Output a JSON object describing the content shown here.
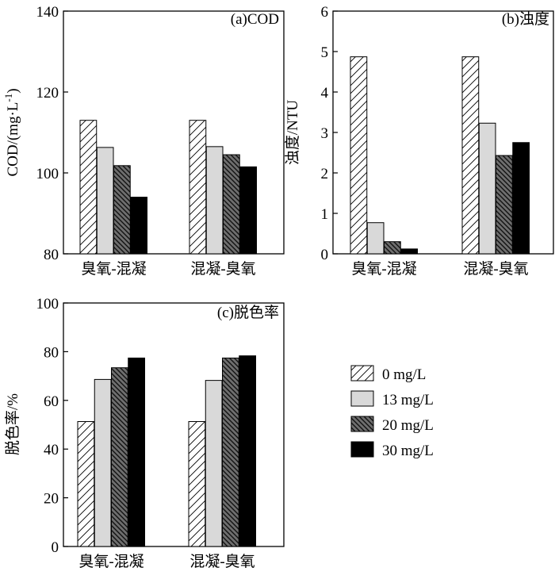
{
  "chart_data": [
    {
      "id": "a",
      "type": "bar",
      "title": "(a)COD",
      "ylabel": "COD/(mg·L",
      "ylabel_sup": "-1",
      "ylabel_close": ")",
      "ylim": [
        80,
        140
      ],
      "yticks": [
        80,
        100,
        120,
        140
      ],
      "categories": [
        "臭氧-混凝",
        "混凝-臭氧"
      ],
      "series": [
        {
          "name": "0 mg/L",
          "values": [
            113,
            113
          ]
        },
        {
          "name": "13 mg/L",
          "values": [
            106.3,
            106.5
          ]
        },
        {
          "name": "20 mg/L",
          "values": [
            101.8,
            104.5
          ]
        },
        {
          "name": "30 mg/L",
          "values": [
            94,
            101.5
          ]
        }
      ]
    },
    {
      "id": "b",
      "type": "bar",
      "title": "(b)浊度",
      "ylabel": "浊度/NTU",
      "ylim": [
        0,
        6
      ],
      "yticks": [
        0,
        1,
        2,
        3,
        4,
        5,
        6
      ],
      "categories": [
        "臭氧-混凝",
        "混凝-臭氧"
      ],
      "series": [
        {
          "name": "0 mg/L",
          "values": [
            4.87,
            4.87
          ]
        },
        {
          "name": "13 mg/L",
          "values": [
            0.77,
            3.23
          ]
        },
        {
          "name": "20 mg/L",
          "values": [
            0.3,
            2.43
          ]
        },
        {
          "name": "30 mg/L",
          "values": [
            0.12,
            2.75
          ]
        }
      ]
    },
    {
      "id": "c",
      "type": "bar",
      "title": "(c)脱色率",
      "ylabel": "脱色率/%",
      "ylim": [
        0,
        100
      ],
      "yticks": [
        0,
        20,
        40,
        60,
        80,
        100
      ],
      "categories": [
        "臭氧-混凝",
        "混凝-臭氧"
      ],
      "series": [
        {
          "name": "0 mg/L",
          "values": [
            51.3,
            51.3
          ]
        },
        {
          "name": "13 mg/L",
          "values": [
            68.6,
            68.2
          ]
        },
        {
          "name": "20 mg/L",
          "values": [
            73.4,
            77.4
          ]
        },
        {
          "name": "30 mg/L",
          "values": [
            77.4,
            78.3
          ]
        }
      ]
    }
  ],
  "legend": [
    {
      "label": "0 mg/L",
      "style": "hatch-sparse"
    },
    {
      "label": "13 mg/L",
      "style": "light-gray"
    },
    {
      "label": "20 mg/L",
      "style": "hatch-dense"
    },
    {
      "label": "30 mg/L",
      "style": "solid-black"
    }
  ]
}
